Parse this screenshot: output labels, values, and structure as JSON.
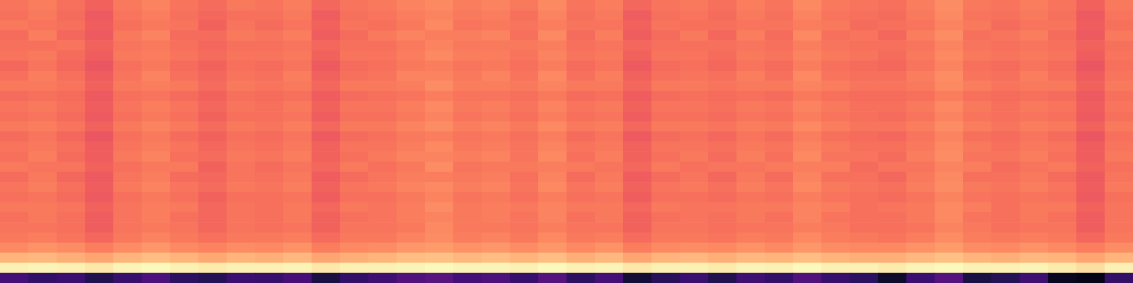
{
  "chart_data": {
    "type": "heatmap",
    "color": "magma",
    "zlim": [
      0,
      100
    ],
    "tick_labels": false,
    "values": [
      [
        71,
        73,
        70,
        67,
        72,
        74,
        71,
        69,
        72,
        71,
        73,
        68,
        71,
        72,
        74,
        75,
        73,
        74,
        72,
        75,
        71,
        73,
        68,
        71,
        72,
        70,
        73,
        71,
        75,
        72,
        71,
        70,
        73,
        76,
        72,
        71,
        73,
        71,
        67,
        72
      ],
      [
        70,
        72,
        69,
        65,
        71,
        73,
        70,
        68,
        70,
        70,
        72,
        66,
        70,
        71,
        73,
        74,
        72,
        73,
        70,
        74,
        70,
        72,
        66,
        70,
        71,
        69,
        72,
        70,
        74,
        71,
        70,
        69,
        72,
        75,
        71,
        70,
        72,
        70,
        65,
        71
      ],
      [
        72,
        71,
        70,
        66,
        70,
        72,
        71,
        67,
        71,
        69,
        71,
        67,
        71,
        70,
        72,
        75,
        71,
        72,
        71,
        73,
        71,
        71,
        67,
        71,
        70,
        70,
        71,
        71,
        73,
        72,
        69,
        70,
        71,
        74,
        72,
        69,
        71,
        71,
        66,
        70
      ],
      [
        69,
        73,
        68,
        65,
        72,
        74,
        69,
        69,
        72,
        71,
        73,
        66,
        69,
        72,
        74,
        73,
        73,
        74,
        70,
        75,
        69,
        73,
        66,
        69,
        72,
        68,
        73,
        69,
        75,
        70,
        71,
        68,
        73,
        76,
        70,
        71,
        73,
        69,
        65,
        72
      ],
      [
        70,
        70,
        71,
        67,
        71,
        72,
        70,
        68,
        70,
        70,
        71,
        68,
        70,
        70,
        72,
        74,
        72,
        72,
        72,
        73,
        70,
        71,
        68,
        70,
        70,
        70,
        71,
        70,
        73,
        71,
        70,
        70,
        71,
        74,
        71,
        70,
        71,
        70,
        67,
        70
      ],
      [
        71,
        72,
        69,
        66,
        72,
        73,
        71,
        69,
        71,
        71,
        72,
        67,
        71,
        71,
        73,
        75,
        73,
        73,
        71,
        74,
        71,
        72,
        67,
        71,
        71,
        69,
        72,
        71,
        74,
        72,
        71,
        69,
        72,
        75,
        72,
        71,
        72,
        71,
        66,
        71
      ],
      [
        68,
        71,
        68,
        64,
        70,
        72,
        69,
        67,
        70,
        69,
        71,
        65,
        69,
        70,
        72,
        73,
        71,
        72,
        70,
        73,
        69,
        71,
        65,
        69,
        70,
        68,
        71,
        69,
        73,
        70,
        69,
        68,
        71,
        74,
        70,
        69,
        71,
        69,
        64,
        70
      ],
      [
        70,
        73,
        70,
        66,
        71,
        74,
        70,
        68,
        71,
        70,
        73,
        67,
        70,
        71,
        74,
        74,
        72,
        74,
        71,
        75,
        70,
        73,
        67,
        70,
        71,
        70,
        73,
        70,
        75,
        71,
        70,
        70,
        73,
        76,
        71,
        70,
        73,
        70,
        66,
        71
      ],
      [
        72,
        72,
        71,
        67,
        72,
        73,
        72,
        69,
        72,
        71,
        72,
        68,
        72,
        72,
        73,
        76,
        73,
        73,
        72,
        74,
        72,
        72,
        68,
        72,
        72,
        71,
        72,
        72,
        74,
        73,
        71,
        71,
        72,
        75,
        73,
        71,
        72,
        72,
        67,
        72
      ],
      [
        69,
        70,
        69,
        65,
        70,
        71,
        69,
        67,
        70,
        69,
        70,
        66,
        69,
        70,
        71,
        73,
        71,
        71,
        70,
        72,
        69,
        70,
        66,
        69,
        70,
        69,
        70,
        69,
        72,
        70,
        69,
        69,
        70,
        73,
        70,
        69,
        70,
        69,
        65,
        70
      ],
      [
        71,
        72,
        70,
        66,
        71,
        73,
        71,
        68,
        71,
        70,
        72,
        67,
        71,
        71,
        73,
        75,
        72,
        73,
        71,
        74,
        71,
        72,
        67,
        71,
        71,
        70,
        72,
        71,
        74,
        72,
        70,
        70,
        72,
        75,
        72,
        70,
        72,
        71,
        66,
        71
      ],
      [
        70,
        71,
        69,
        65,
        70,
        72,
        70,
        67,
        70,
        70,
        71,
        66,
        70,
        70,
        72,
        74,
        71,
        72,
        70,
        73,
        70,
        71,
        66,
        70,
        70,
        69,
        71,
        70,
        73,
        71,
        70,
        69,
        71,
        74,
        71,
        70,
        71,
        70,
        65,
        70
      ],
      [
        72,
        73,
        71,
        67,
        72,
        74,
        72,
        69,
        72,
        71,
        73,
        68,
        72,
        72,
        74,
        76,
        73,
        74,
        72,
        75,
        72,
        73,
        68,
        72,
        72,
        71,
        73,
        72,
        75,
        73,
        71,
        71,
        73,
        76,
        73,
        71,
        73,
        72,
        67,
        72
      ],
      [
        69,
        71,
        68,
        64,
        70,
        72,
        69,
        67,
        70,
        69,
        71,
        65,
        69,
        70,
        72,
        73,
        71,
        72,
        70,
        73,
        69,
        71,
        65,
        69,
        70,
        68,
        71,
        69,
        73,
        70,
        69,
        68,
        71,
        74,
        70,
        69,
        71,
        69,
        64,
        70
      ],
      [
        71,
        72,
        70,
        66,
        71,
        73,
        71,
        68,
        71,
        70,
        72,
        67,
        71,
        71,
        73,
        75,
        72,
        73,
        71,
        74,
        71,
        72,
        67,
        71,
        71,
        70,
        72,
        71,
        74,
        72,
        70,
        70,
        72,
        75,
        72,
        70,
        72,
        71,
        66,
        71
      ],
      [
        70,
        73,
        69,
        66,
        72,
        74,
        70,
        69,
        72,
        71,
        73,
        67,
        70,
        72,
        74,
        74,
        73,
        74,
        71,
        75,
        70,
        73,
        67,
        70,
        72,
        69,
        73,
        70,
        75,
        71,
        71,
        69,
        73,
        76,
        71,
        71,
        73,
        70,
        66,
        72
      ],
      [
        72,
        71,
        71,
        67,
        70,
        72,
        72,
        67,
        71,
        69,
        71,
        68,
        72,
        70,
        72,
        76,
        71,
        72,
        72,
        73,
        72,
        71,
        68,
        72,
        70,
        71,
        71,
        72,
        73,
        73,
        69,
        71,
        71,
        74,
        73,
        69,
        71,
        72,
        67,
        70
      ],
      [
        69,
        72,
        68,
        65,
        71,
        73,
        69,
        68,
        71,
        70,
        72,
        66,
        69,
        71,
        73,
        73,
        72,
        73,
        70,
        74,
        69,
        72,
        66,
        69,
        71,
        68,
        72,
        69,
        74,
        70,
        70,
        68,
        72,
        75,
        70,
        70,
        72,
        69,
        65,
        71
      ],
      [
        71,
        73,
        70,
        66,
        72,
        74,
        71,
        69,
        72,
        71,
        73,
        67,
        71,
        72,
        74,
        75,
        73,
        74,
        71,
        75,
        71,
        73,
        67,
        71,
        72,
        70,
        73,
        71,
        75,
        72,
        71,
        70,
        73,
        76,
        72,
        71,
        73,
        71,
        66,
        72
      ],
      [
        70,
        71,
        69,
        65,
        70,
        72,
        70,
        67,
        70,
        70,
        71,
        66,
        70,
        70,
        72,
        74,
        71,
        72,
        70,
        73,
        70,
        71,
        66,
        70,
        70,
        69,
        71,
        70,
        73,
        71,
        70,
        69,
        71,
        74,
        71,
        70,
        71,
        70,
        65,
        70
      ],
      [
        72,
        72,
        71,
        67,
        71,
        73,
        72,
        68,
        71,
        70,
        72,
        68,
        72,
        71,
        73,
        76,
        72,
        73,
        72,
        74,
        72,
        72,
        68,
        72,
        71,
        71,
        72,
        72,
        74,
        73,
        70,
        71,
        72,
        75,
        73,
        70,
        72,
        72,
        67,
        71
      ],
      [
        70,
        72,
        70,
        66,
        71,
        73,
        70,
        68,
        71,
        70,
        72,
        67,
        70,
        71,
        73,
        74,
        72,
        73,
        71,
        74,
        70,
        72,
        67,
        70,
        71,
        70,
        72,
        70,
        74,
        71,
        70,
        70,
        72,
        75,
        71,
        70,
        72,
        70,
        66,
        71
      ],
      [
        71,
        71,
        70,
        66,
        71,
        72,
        71,
        68,
        71,
        70,
        71,
        67,
        71,
        71,
        72,
        75,
        72,
        72,
        71,
        73,
        71,
        71,
        67,
        71,
        71,
        70,
        71,
        71,
        73,
        72,
        70,
        70,
        71,
        74,
        72,
        70,
        71,
        71,
        66,
        71
      ],
      [
        72,
        73,
        71,
        68,
        72,
        74,
        72,
        70,
        72,
        72,
        73,
        69,
        72,
        72,
        74,
        76,
        73,
        74,
        72,
        75,
        72,
        73,
        69,
        72,
        72,
        71,
        73,
        72,
        75,
        73,
        72,
        71,
        73,
        76,
        73,
        72,
        73,
        72,
        68,
        72
      ],
      [
        75,
        77,
        76,
        73,
        76,
        78,
        75,
        74,
        76,
        75,
        77,
        73,
        75,
        76,
        78,
        79,
        77,
        78,
        76,
        78,
        75,
        77,
        73,
        75,
        76,
        75,
        77,
        75,
        78,
        76,
        75,
        75,
        77,
        79,
        76,
        75,
        77,
        75,
        73,
        76
      ],
      [
        84,
        85,
        83,
        81,
        84,
        86,
        84,
        82,
        84,
        83,
        85,
        81,
        83,
        84,
        86,
        87,
        85,
        86,
        84,
        86,
        83,
        85,
        81,
        84,
        85,
        83,
        85,
        84,
        86,
        84,
        83,
        83,
        85,
        87,
        84,
        83,
        85,
        84,
        81,
        84
      ],
      [
        97,
        98,
        97,
        95,
        98,
        99,
        97,
        96,
        97,
        97,
        98,
        95,
        97,
        97,
        98,
        99,
        98,
        98,
        97,
        99,
        97,
        98,
        95,
        97,
        97,
        96,
        98,
        97,
        99,
        97,
        97,
        96,
        98,
        99,
        97,
        97,
        98,
        96,
        93,
        97
      ],
      [
        22,
        18,
        20,
        14,
        19,
        24,
        17,
        15,
        20,
        19,
        23,
        12,
        18,
        21,
        25,
        27,
        22,
        24,
        19,
        26,
        17,
        22,
        10,
        16,
        20,
        14,
        21,
        18,
        25,
        19,
        17,
        8,
        20,
        26,
        12,
        15,
        21,
        6,
        4,
        18
      ]
    ]
  }
}
